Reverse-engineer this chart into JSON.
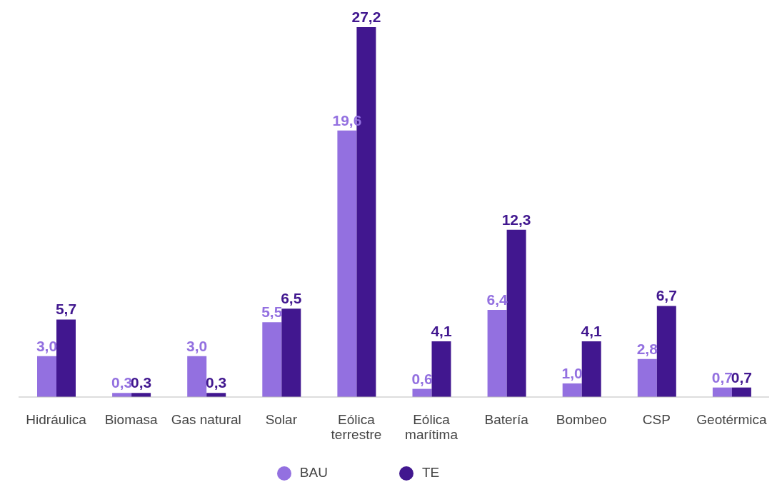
{
  "chart_data": {
    "type": "bar",
    "categories": [
      "Hidráulica",
      "Biomasa",
      "Gas natural",
      "Solar",
      "Eólica terrestre",
      "Eólica marítima",
      "Batería",
      "Bombeo",
      "CSP",
      "Geotérmica"
    ],
    "series": [
      {
        "name": "BAU",
        "color": "#9370e0",
        "values": [
          3.0,
          0.3,
          3.0,
          5.5,
          19.6,
          0.6,
          6.4,
          1.0,
          2.8,
          0.7
        ],
        "value_labels": [
          "3,0",
          "0,3",
          "3,0",
          "5,5",
          "19,6",
          "0,6",
          "6,4",
          "1,0",
          "2,8",
          "0,7"
        ]
      },
      {
        "name": "TE",
        "color": "#41178f",
        "values": [
          5.7,
          0.3,
          0.3,
          6.5,
          27.2,
          4.1,
          12.3,
          4.1,
          6.7,
          0.7
        ],
        "value_labels": [
          "5,7",
          "0,3",
          "0,3",
          "6,5",
          "27,2",
          "4,1",
          "12,3",
          "4,1",
          "6,7",
          "0,7"
        ]
      }
    ],
    "legend": "bottom",
    "grid": false
  }
}
